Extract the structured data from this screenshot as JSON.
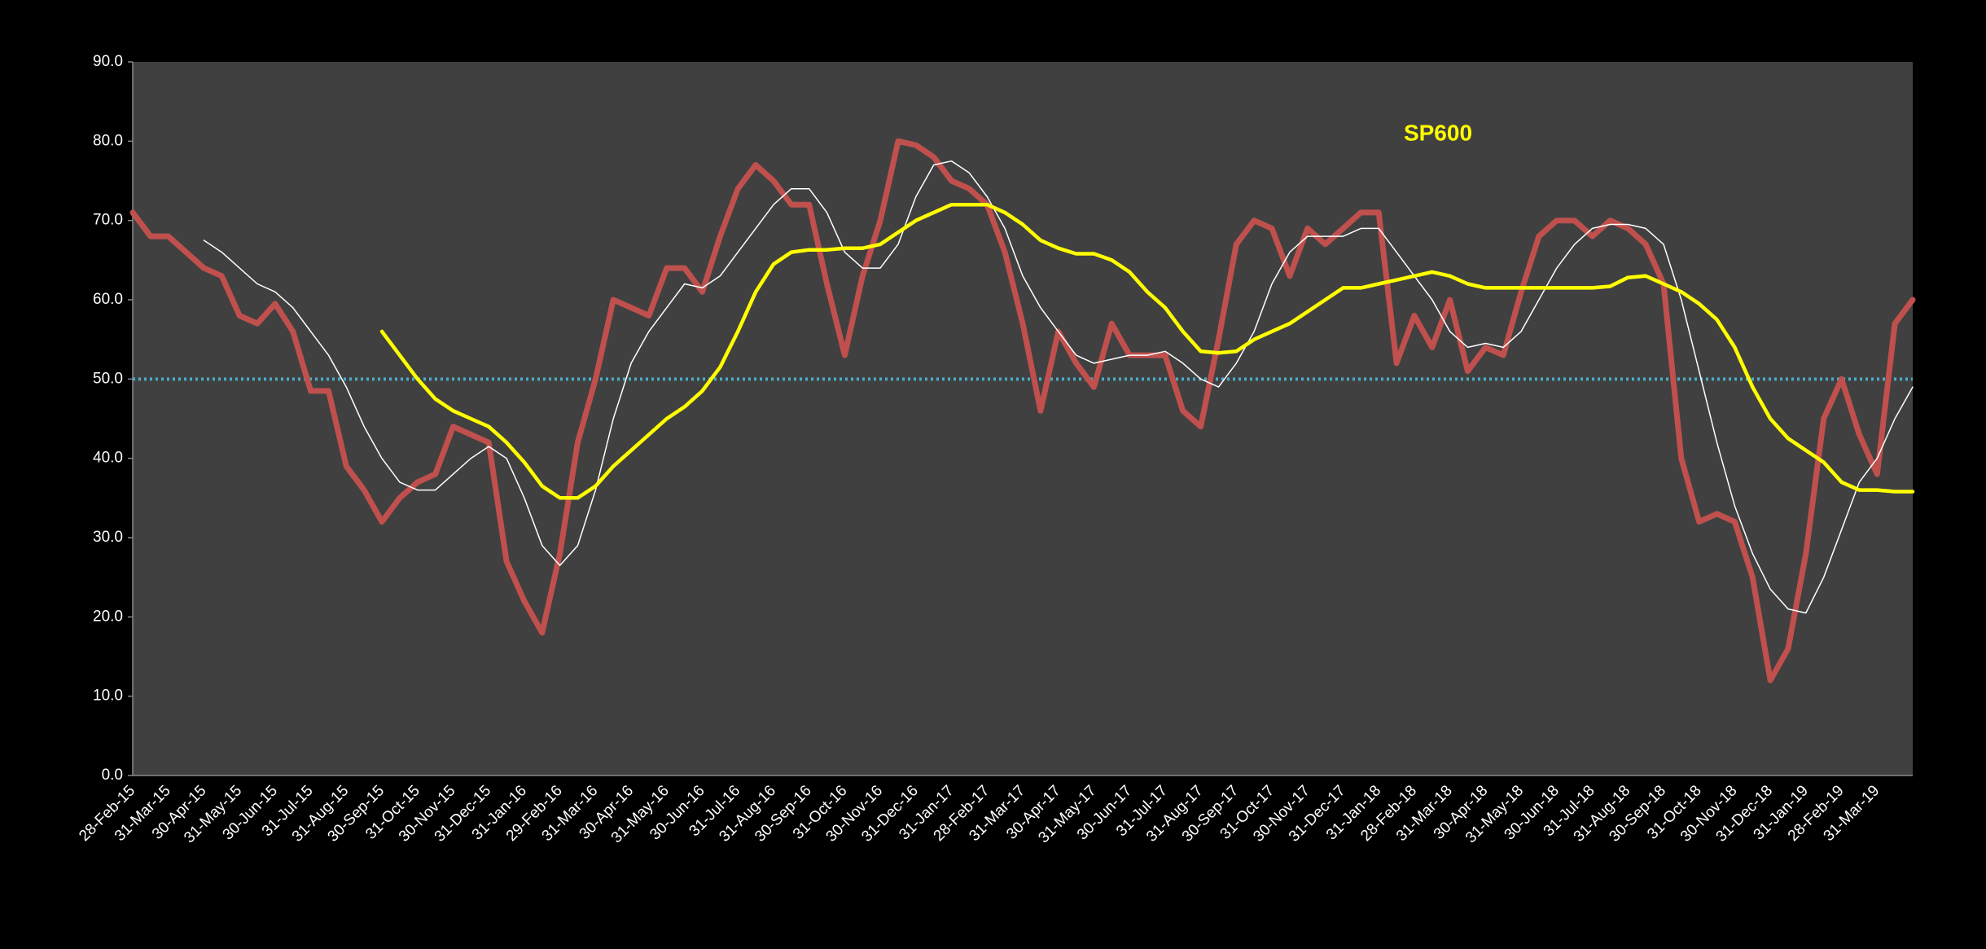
{
  "chart_data": {
    "type": "line",
    "title": "SP600",
    "title_color": "#ffff00",
    "categories": [
      "28-Feb-15",
      null,
      "31-Mar-15",
      null,
      "30-Apr-15",
      null,
      "31-May-15",
      null,
      "30-Jun-15",
      null,
      "31-Jul-15",
      null,
      "31-Aug-15",
      null,
      "30-Sep-15",
      null,
      "31-Oct-15",
      null,
      "30-Nov-15",
      null,
      "31-Dec-15",
      null,
      "31-Jan-16",
      null,
      "29-Feb-16",
      null,
      "31-Mar-16",
      null,
      "30-Apr-16",
      null,
      "31-May-16",
      null,
      "30-Jun-16",
      null,
      "31-Jul-16",
      null,
      "31-Aug-16",
      null,
      "30-Sep-16",
      null,
      "31-Oct-16",
      null,
      "30-Nov-16",
      null,
      "31-Dec-16",
      null,
      "31-Jan-17",
      null,
      "28-Feb-17",
      null,
      "31-Mar-17",
      null,
      "30-Apr-17",
      null,
      "31-May-17",
      null,
      "30-Jun-17",
      null,
      "31-Jul-17",
      null,
      "31-Aug-17",
      null,
      "30-Sep-17",
      null,
      "31-Oct-17",
      null,
      "30-Nov-17",
      null,
      "31-Dec-17",
      null,
      "31-Jan-18",
      null,
      "28-Feb-18",
      null,
      "31-Mar-18",
      null,
      "30-Apr-18",
      null,
      "31-May-18",
      null,
      "30-Jun-18",
      null,
      "31-Jul-18",
      null,
      "31-Aug-18",
      null,
      "30-Sep-18",
      null,
      "31-Oct-18",
      null,
      "30-Nov-18",
      null,
      "31-Dec-18",
      null,
      "31-Jan-19",
      null,
      "28-Feb-19",
      null,
      "31-Mar-19",
      null,
      null
    ],
    "series": [
      {
        "color": "#c0504d",
        "width": 7,
        "values": [
          71,
          68,
          68,
          66,
          64,
          63,
          58,
          57,
          59.5,
          56,
          48.5,
          48.5,
          39,
          36,
          32,
          35,
          37,
          38,
          44,
          43,
          42,
          27,
          22,
          18,
          28,
          42,
          50,
          60,
          59,
          58,
          64,
          64,
          61,
          68,
          74,
          77,
          75,
          72,
          72,
          62,
          53,
          63,
          70,
          80,
          79.5,
          78,
          75,
          74,
          72,
          66,
          57,
          46,
          56,
          52,
          49,
          57,
          53,
          53,
          53,
          46,
          44,
          55,
          67,
          70,
          69,
          63,
          69,
          67,
          69,
          71,
          71,
          52,
          58,
          54,
          60,
          51,
          54,
          53,
          61,
          68,
          70,
          70,
          68,
          70,
          69,
          67,
          62,
          40,
          32,
          33,
          32,
          25,
          12,
          16,
          28,
          45,
          50,
          43,
          38,
          57,
          60
        ]
      },
      {
        "color": "#ffffff",
        "width": 1.5,
        "values": [
          null,
          null,
          null,
          null,
          67.5,
          66,
          64,
          62,
          61,
          59,
          56,
          53,
          49,
          44,
          40,
          37,
          36,
          36,
          38,
          40,
          41.5,
          40,
          35,
          29,
          26.5,
          29,
          36,
          45,
          52,
          56,
          59,
          62,
          61.5,
          63,
          66,
          69,
          72,
          74,
          74,
          71,
          66,
          64,
          64,
          67,
          73,
          77,
          77.5,
          76,
          73,
          69,
          63,
          59,
          56,
          53,
          52,
          52.5,
          53,
          53,
          53.5,
          52,
          50,
          49,
          52,
          56,
          62,
          66,
          68,
          68,
          68,
          69,
          69,
          66,
          63,
          60,
          56,
          54,
          54.5,
          54,
          56,
          60,
          64,
          67,
          69,
          69.5,
          69.5,
          69,
          67,
          60,
          51,
          42,
          34,
          28,
          23.5,
          21,
          20.5,
          25,
          31,
          37,
          40,
          45,
          49
        ]
      },
      {
        "color": "#ffff00",
        "width": 4.5,
        "values": [
          null,
          null,
          null,
          null,
          null,
          null,
          null,
          null,
          null,
          null,
          null,
          null,
          null,
          null,
          56,
          53,
          50,
          47.5,
          46,
          45,
          44,
          42,
          39.5,
          36.5,
          35,
          35,
          36.5,
          39,
          41,
          43,
          45,
          46.5,
          48.5,
          51.5,
          56,
          61,
          64.5,
          66,
          66.3,
          66.3,
          66.5,
          66.5,
          67,
          68.5,
          70,
          71,
          72,
          72,
          72,
          71,
          69.5,
          67.5,
          66.5,
          65.8,
          65.8,
          65,
          63.5,
          61,
          59,
          56,
          53.5,
          53.3,
          53.5,
          55,
          56,
          57,
          58.5,
          60,
          61.5,
          61.5,
          62,
          62.5,
          63,
          63.5,
          63,
          62,
          61.5,
          61.5,
          61.5,
          61.5,
          61.5,
          61.5,
          61.5,
          61.7,
          62.8,
          63,
          62,
          61,
          59.5,
          57.5,
          54,
          49,
          45,
          42.5,
          41,
          39.5,
          37,
          36,
          36,
          35.8,
          35.8
        ]
      }
    ],
    "reference_line": {
      "value": 50,
      "color": "#4bacc6"
    },
    "ylim": [
      0,
      90
    ],
    "yticks": [
      {
        "value": 0,
        "label": "0.0"
      },
      {
        "value": 10,
        "label": "10.0"
      },
      {
        "value": 20,
        "label": "20.0"
      },
      {
        "value": 30,
        "label": "30.0"
      },
      {
        "value": 40,
        "label": "40.0"
      },
      {
        "value": 50,
        "label": "50.0"
      },
      {
        "value": 60,
        "label": "60.0"
      },
      {
        "value": 70,
        "label": "70.0"
      },
      {
        "value": 80,
        "label": "80.0"
      },
      {
        "value": 90,
        "label": "90.0"
      }
    ],
    "grid": false
  }
}
